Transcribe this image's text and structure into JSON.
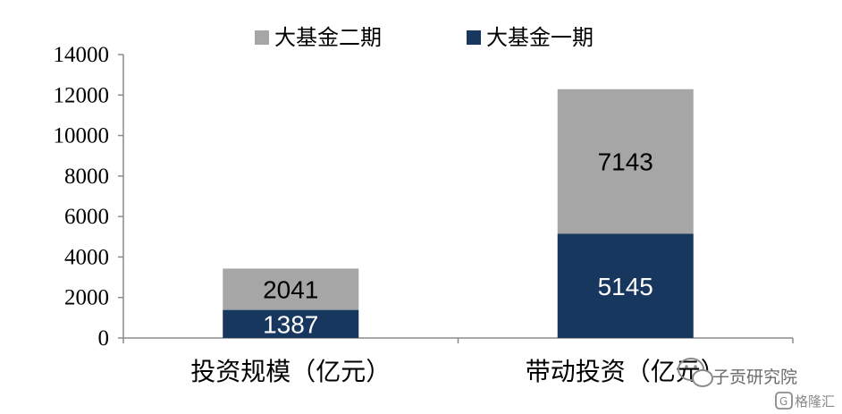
{
  "chart_data": {
    "type": "bar",
    "stacked": true,
    "categories": [
      "投资规模（亿元）",
      "带动投资（亿元）"
    ],
    "series": [
      {
        "name": "大基金一期",
        "values": [
          1387,
          5145
        ],
        "color": "#17375e",
        "label_color": "#ffffff"
      },
      {
        "name": "大基金二期",
        "values": [
          2041,
          7143
        ],
        "color": "#a6a6a6",
        "label_color": "#000000"
      }
    ],
    "legend_order": [
      "大基金二期",
      "大基金一期"
    ],
    "legend_position": "top",
    "ylim": [
      0,
      14000
    ],
    "yticks": [
      0,
      2000,
      4000,
      6000,
      8000,
      10000,
      12000,
      14000
    ],
    "grid": false
  },
  "watermark": {
    "text": "子贡研究院",
    "brand": "格隆汇"
  }
}
